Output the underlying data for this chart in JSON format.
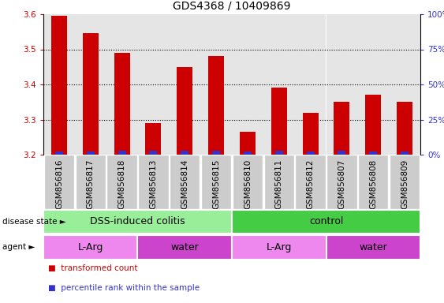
{
  "title": "GDS4368 / 10409869",
  "samples": [
    "GSM856816",
    "GSM856817",
    "GSM856818",
    "GSM856813",
    "GSM856814",
    "GSM856815",
    "GSM856810",
    "GSM856811",
    "GSM856812",
    "GSM856807",
    "GSM856808",
    "GSM856809"
  ],
  "red_values": [
    3.595,
    3.545,
    3.49,
    3.29,
    3.45,
    3.48,
    3.265,
    3.39,
    3.32,
    3.35,
    3.37,
    3.35
  ],
  "blue_values_pct": [
    2,
    2,
    3,
    3,
    3,
    3,
    2,
    3,
    2,
    3,
    2,
    2
  ],
  "ylim_left": [
    3.2,
    3.6
  ],
  "ylim_right": [
    0,
    100
  ],
  "yticks_left": [
    3.2,
    3.3,
    3.4,
    3.5,
    3.6
  ],
  "yticks_right": [
    0,
    25,
    50,
    75,
    100
  ],
  "red_color": "#cc0000",
  "blue_color": "#3333cc",
  "bar_width": 0.5,
  "blue_bar_width": 0.25,
  "disease_state_groups": [
    {
      "label": "DSS-induced colitis",
      "start": 0,
      "end": 6,
      "color": "#99ee99"
    },
    {
      "label": "control",
      "start": 6,
      "end": 12,
      "color": "#44cc44"
    }
  ],
  "agent_groups": [
    {
      "label": "L-Arg",
      "start": 0,
      "end": 3,
      "color": "#ee88ee"
    },
    {
      "label": "water",
      "start": 3,
      "end": 6,
      "color": "#cc44cc"
    },
    {
      "label": "L-Arg",
      "start": 6,
      "end": 9,
      "color": "#ee88ee"
    },
    {
      "label": "water",
      "start": 9,
      "end": 12,
      "color": "#cc44cc"
    }
  ],
  "legend_items": [
    {
      "label": "transformed count",
      "color": "#cc0000"
    },
    {
      "label": "percentile rank within the sample",
      "color": "#3333cc"
    }
  ],
  "base_value": 3.2,
  "title_fontsize": 10,
  "tick_fontsize": 7.5,
  "label_fontsize": 9,
  "annot_fontsize": 8
}
